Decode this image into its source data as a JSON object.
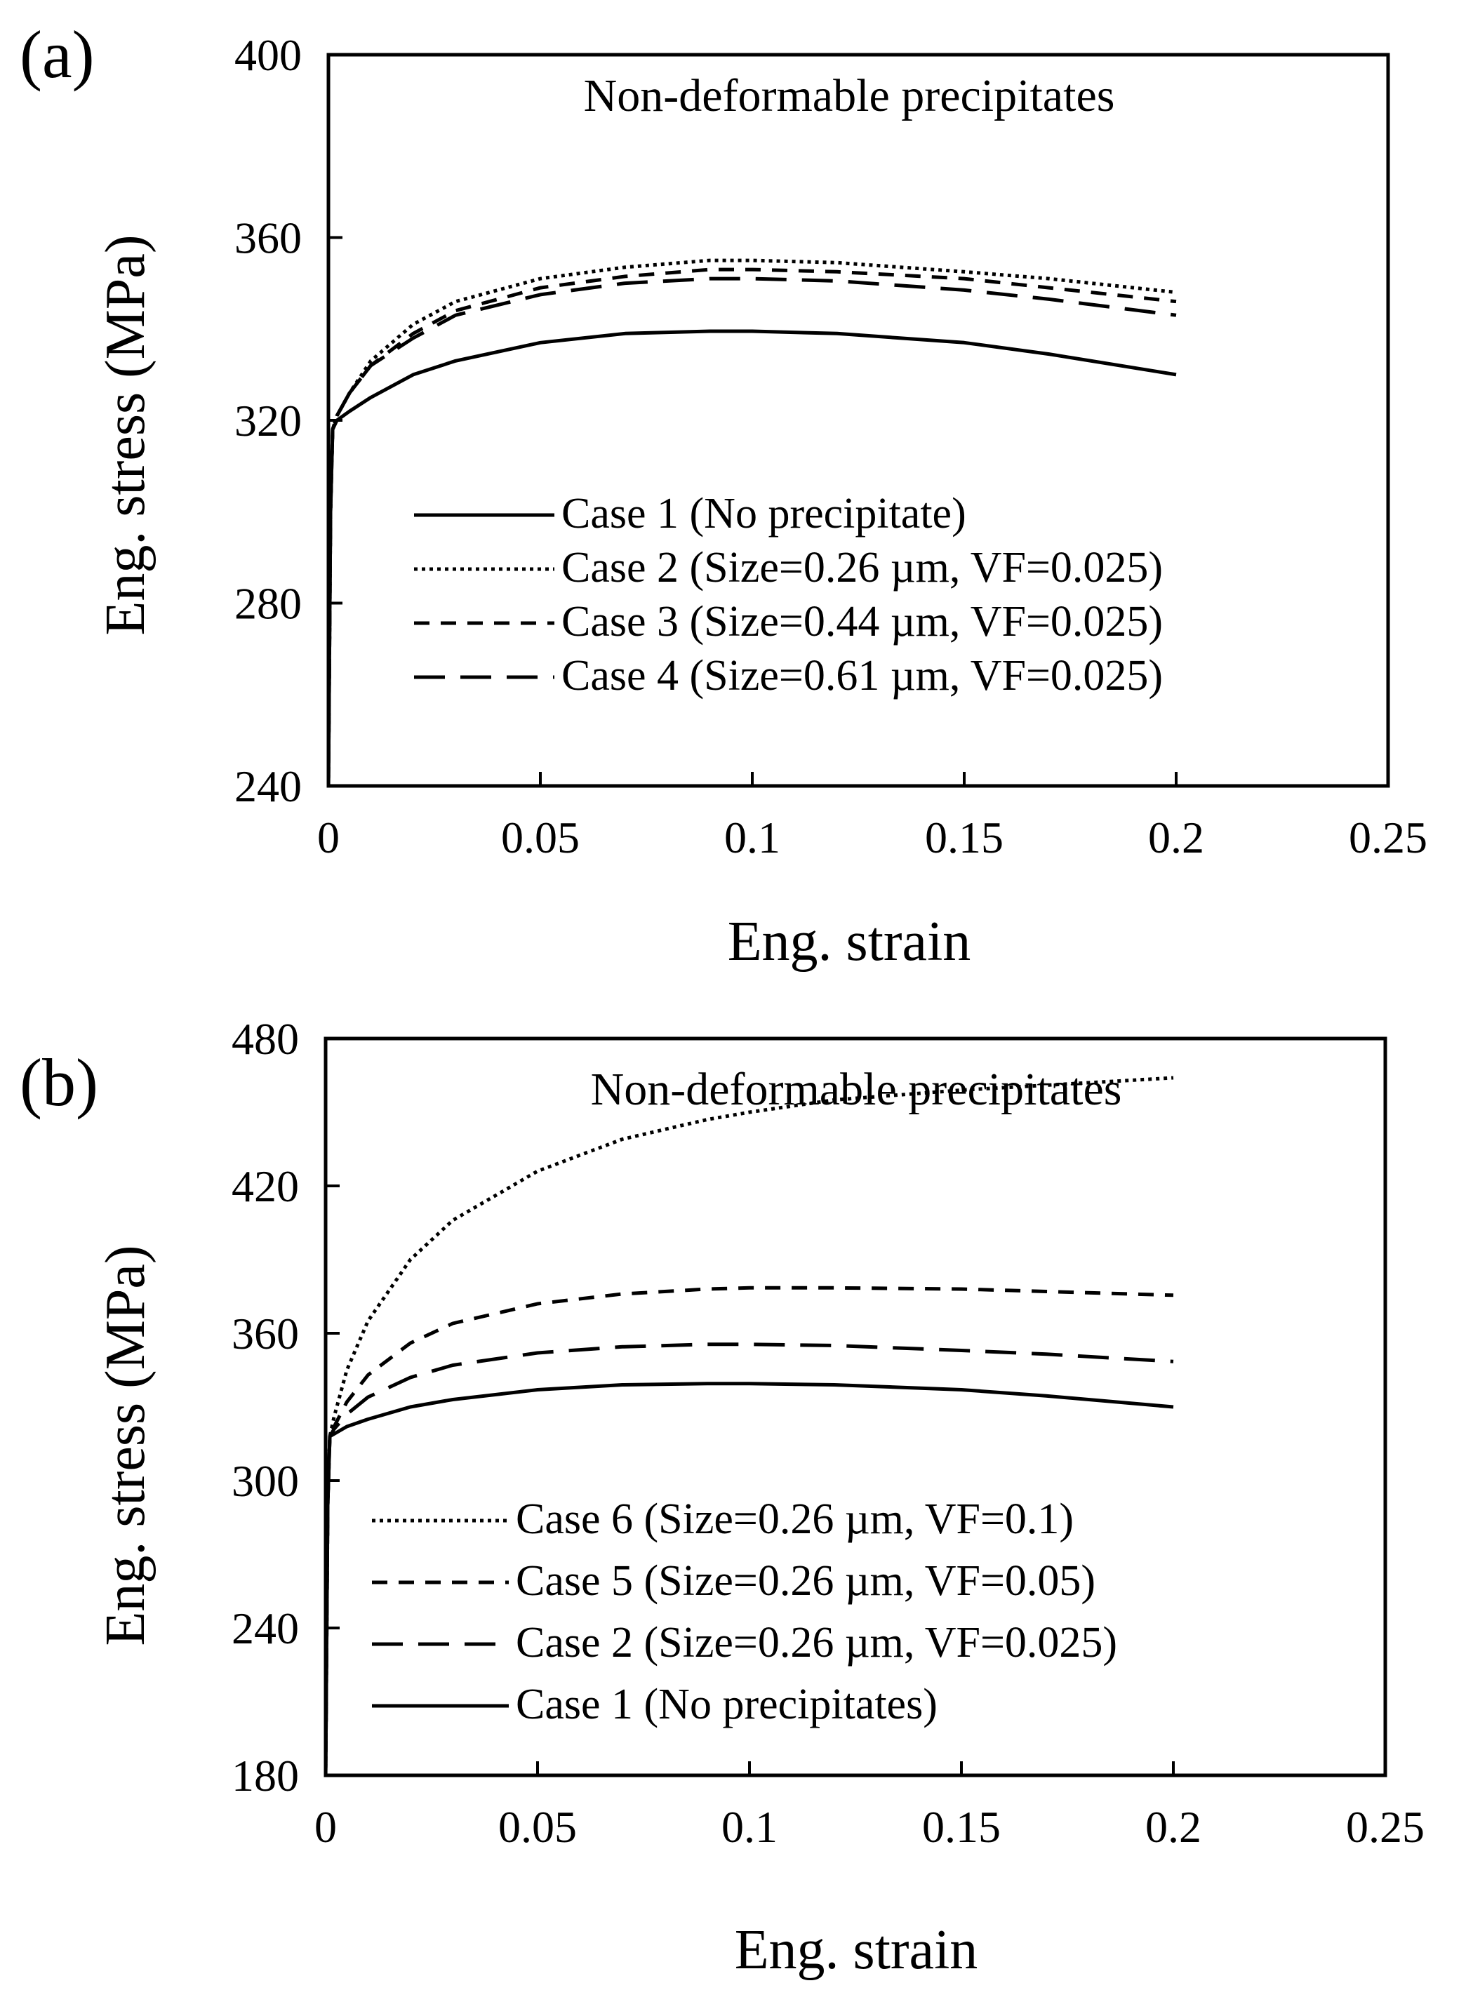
{
  "chart_data": [
    {
      "type": "line",
      "panel_label": "(a)",
      "title": "Non-deformable precipitates",
      "xlabel": "Eng. strain",
      "ylabel": "Eng. stress (MPa)",
      "xlim": [
        0,
        0.25
      ],
      "ylim": [
        240,
        400
      ],
      "xticks": [
        "0",
        "0.05",
        "0.1",
        "0.15",
        "0.2",
        "0.25"
      ],
      "yticks": [
        "240",
        "280",
        "320",
        "360",
        "400"
      ],
      "grid": false,
      "legend_position": "lower-right",
      "series": [
        {
          "name": "Case 1 (No precipitate)",
          "style": "solid",
          "x": [
            0,
            0.0005,
            0.001,
            0.002,
            0.005,
            0.01,
            0.02,
            0.03,
            0.05,
            0.07,
            0.09,
            0.1,
            0.12,
            0.15,
            0.17,
            0.2
          ],
          "y": [
            240,
            300,
            318,
            320,
            322,
            325,
            330,
            333,
            337,
            339,
            339.5,
            339.5,
            339,
            337,
            334.5,
            330
          ]
        },
        {
          "name": "Case 2 (Size=0.26 µm, VF=0.025)",
          "style": "dotted",
          "x": [
            0,
            0.0005,
            0.001,
            0.002,
            0.005,
            0.01,
            0.02,
            0.03,
            0.05,
            0.07,
            0.09,
            0.1,
            0.12,
            0.15,
            0.17,
            0.2
          ],
          "y": [
            240,
            300,
            318,
            321,
            326,
            333,
            341,
            346,
            351,
            353.5,
            355,
            355,
            354.5,
            352.5,
            351,
            348
          ]
        },
        {
          "name": "Case 3 (Size=0.44 µm, VF=0.025)",
          "style": "short-dash",
          "x": [
            0,
            0.0005,
            0.001,
            0.002,
            0.005,
            0.01,
            0.02,
            0.03,
            0.05,
            0.07,
            0.09,
            0.1,
            0.12,
            0.15,
            0.17,
            0.2
          ],
          "y": [
            240,
            300,
            318,
            321,
            326,
            332,
            339,
            344,
            349,
            351.5,
            353,
            353,
            352.5,
            351,
            349,
            346
          ]
        },
        {
          "name": "Case 4 (Size=0.61 µm, VF=0.025)",
          "style": "long-dash",
          "x": [
            0,
            0.0005,
            0.001,
            0.002,
            0.005,
            0.01,
            0.02,
            0.03,
            0.05,
            0.07,
            0.09,
            0.1,
            0.12,
            0.15,
            0.17,
            0.2
          ],
          "y": [
            240,
            300,
            318,
            321,
            326,
            332,
            338,
            343,
            347.5,
            350,
            351,
            351,
            350.5,
            348.5,
            346.5,
            343
          ]
        }
      ]
    },
    {
      "type": "line",
      "panel_label": "(b)",
      "title": "Non-deformable precipitates",
      "xlabel": "Eng. strain",
      "ylabel": "Eng. stress (MPa)",
      "xlim": [
        0,
        0.25
      ],
      "ylim": [
        180,
        480
      ],
      "xticks": [
        "0",
        "0.05",
        "0.1",
        "0.15",
        "0.2",
        "0.25"
      ],
      "yticks": [
        "180",
        "240",
        "300",
        "360",
        "420",
        "480"
      ],
      "grid": false,
      "legend_position": "lower-right",
      "series": [
        {
          "name": "Case 6 (Size=0.26 µm, VF=0.1)",
          "style": "dotted",
          "x": [
            0,
            0.0005,
            0.001,
            0.002,
            0.005,
            0.01,
            0.02,
            0.03,
            0.05,
            0.07,
            0.09,
            0.1,
            0.12,
            0.15,
            0.17,
            0.2
          ],
          "y": [
            180,
            290,
            318,
            326,
            345,
            365,
            390,
            406,
            426,
            439,
            447,
            450,
            455,
            459,
            461,
            464
          ]
        },
        {
          "name": "Case 5 (Size=0.26 µm, VF=0.05)",
          "style": "short-dash",
          "x": [
            0,
            0.0005,
            0.001,
            0.002,
            0.005,
            0.01,
            0.02,
            0.03,
            0.05,
            0.07,
            0.09,
            0.1,
            0.12,
            0.15,
            0.17,
            0.2
          ],
          "y": [
            180,
            290,
            318,
            322,
            332,
            343,
            356,
            364,
            372,
            376,
            378,
            378.5,
            378.5,
            378,
            377,
            375.5
          ]
        },
        {
          "name": "Case 2 (Size=0.26 µm, VF=0.025)",
          "style": "long-dash",
          "x": [
            0,
            0.0005,
            0.001,
            0.002,
            0.005,
            0.01,
            0.02,
            0.03,
            0.05,
            0.07,
            0.09,
            0.1,
            0.12,
            0.15,
            0.17,
            0.2
          ],
          "y": [
            180,
            290,
            318,
            321,
            327,
            334,
            342,
            347,
            352,
            354.5,
            355.5,
            355.5,
            355,
            353,
            351.5,
            348.5
          ]
        },
        {
          "name": "Case 1 (No precipitates)",
          "style": "solid",
          "x": [
            0,
            0.0005,
            0.001,
            0.002,
            0.005,
            0.01,
            0.02,
            0.03,
            0.05,
            0.07,
            0.09,
            0.1,
            0.12,
            0.15,
            0.17,
            0.2
          ],
          "y": [
            180,
            290,
            318,
            319,
            322,
            325,
            330,
            333,
            337,
            339,
            339.5,
            339.5,
            339,
            337,
            334.5,
            330
          ]
        }
      ]
    }
  ]
}
